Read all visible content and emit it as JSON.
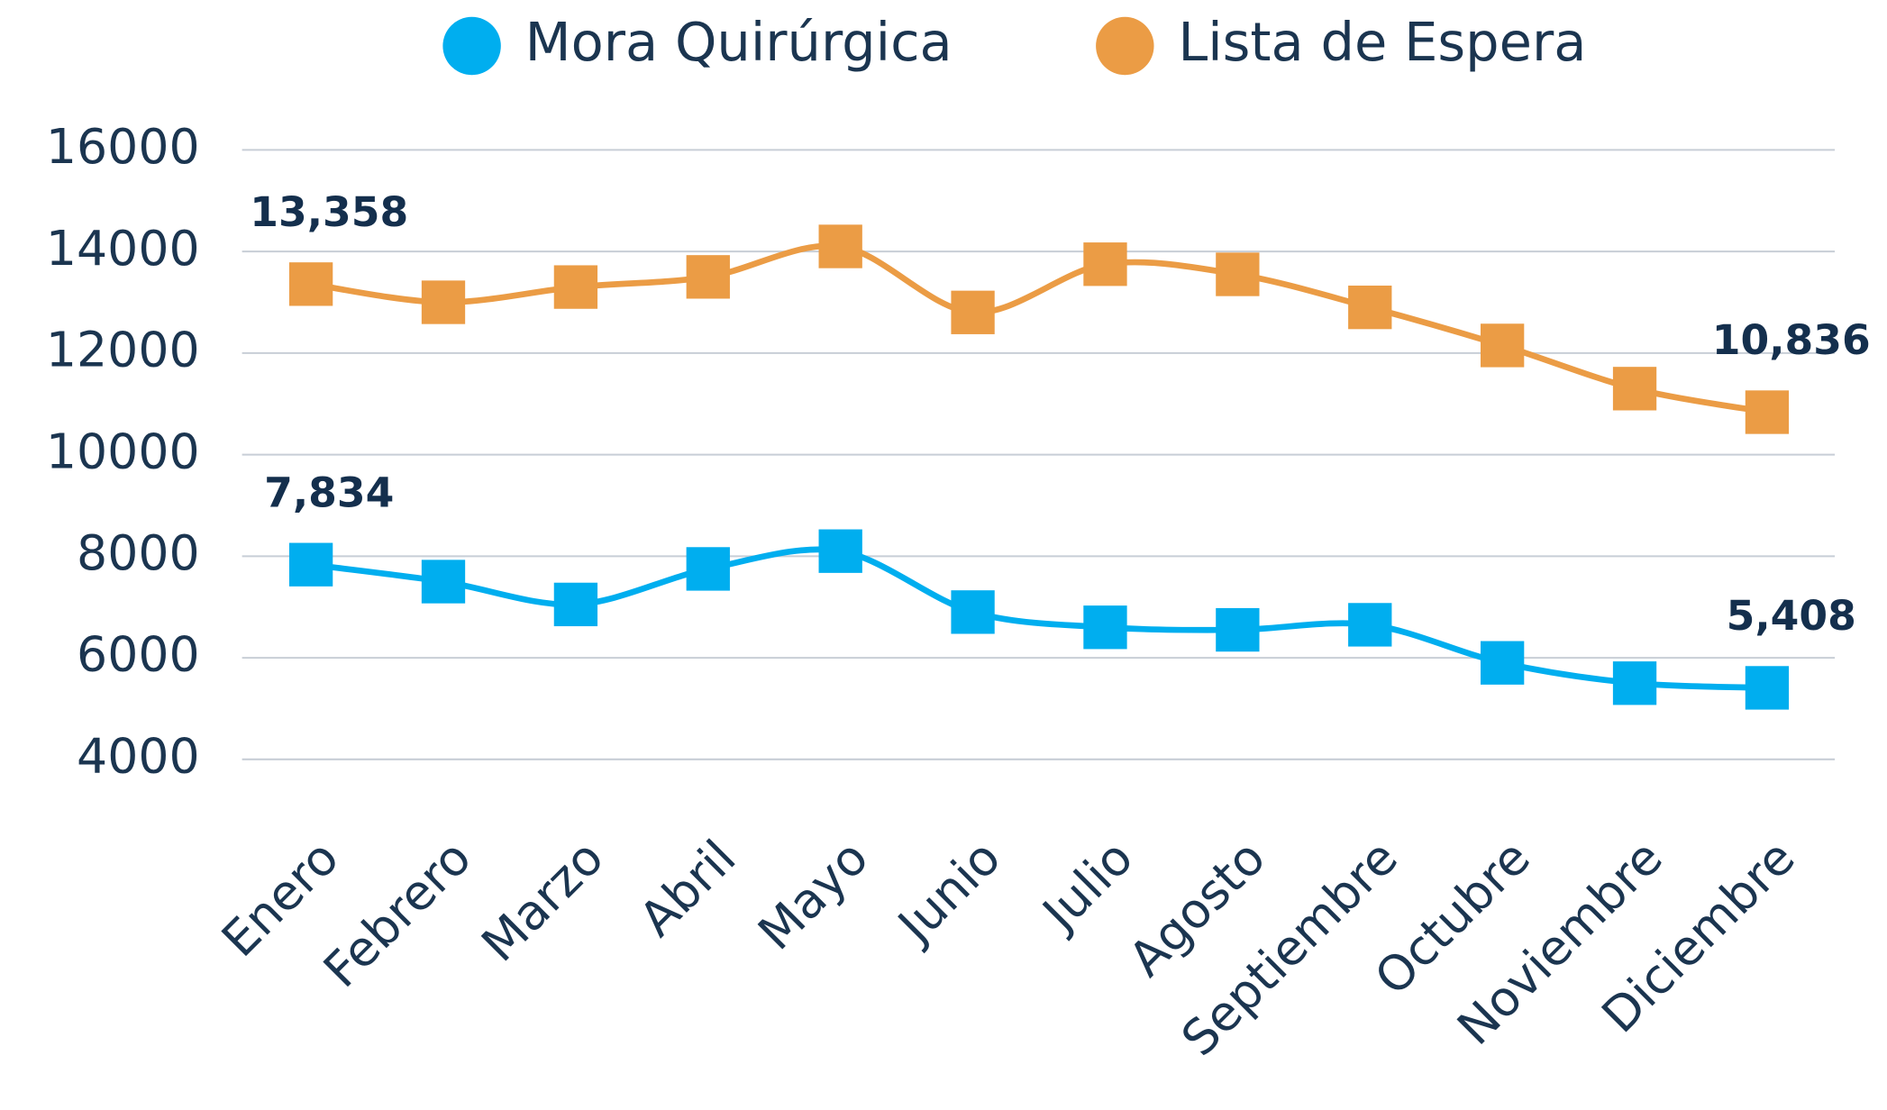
{
  "chart_data": {
    "type": "line",
    "categories": [
      "Enero",
      "Febrero",
      "Marzo",
      "Abril",
      "Mayo",
      "Junio",
      "Julio",
      "Agosto",
      "Septiembre",
      "Octubre",
      "Noviembre",
      "Diciembre"
    ],
    "series": [
      {
        "name": "Mora Quirúrgica",
        "color": "#00aeef",
        "values": [
          7834,
          7500,
          7050,
          7750,
          8100,
          6900,
          6600,
          6550,
          6650,
          5900,
          5500,
          5408
        ],
        "value_labels": [
          "7,834",
          null,
          null,
          null,
          null,
          null,
          null,
          null,
          null,
          null,
          null,
          "5,408"
        ]
      },
      {
        "name": "Lista de Espera",
        "color": "#eb9c45",
        "values": [
          13358,
          13000,
          13300,
          13500,
          14100,
          12800,
          13750,
          13550,
          12900,
          12150,
          11300,
          10836
        ],
        "value_labels": [
          "13,358",
          null,
          null,
          null,
          null,
          null,
          null,
          null,
          null,
          null,
          null,
          "10,836"
        ]
      }
    ],
    "ylim": [
      4000,
      16000
    ],
    "yticks": [
      4000,
      6000,
      8000,
      10000,
      12000,
      14000,
      16000
    ],
    "grid": true,
    "legend": "top"
  }
}
